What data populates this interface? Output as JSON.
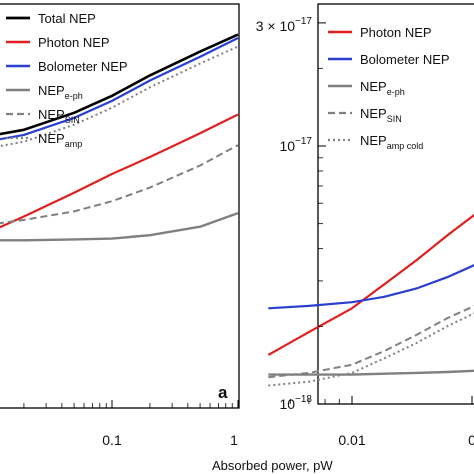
{
  "xlabel": "Absorbed power, pW",
  "colors": {
    "total": "#000000",
    "photon": "#e02020",
    "bolometer": "#2a3fd0",
    "gray": "#808080"
  },
  "chart_data": [
    {
      "type": "line",
      "panel_label": "a",
      "xscale": "log",
      "yscale": "log",
      "xlim": [
        0.01,
        1
      ],
      "x_ticks": [
        "0.1",
        "1"
      ],
      "legend_placement": "top-left",
      "legend": [
        {
          "base": "Total NEP",
          "sub": ""
        },
        {
          "base": "Photon NEP",
          "sub": ""
        },
        {
          "base": "Bolometer NEP",
          "sub": ""
        },
        {
          "base": "NEP",
          "sub": "e-ph"
        },
        {
          "base": "NEP",
          "sub": "SIN"
        },
        {
          "base": "NEP",
          "sub": "amp"
        }
      ],
      "x": [
        0.01,
        0.02,
        0.05,
        0.1,
        0.2,
        0.5,
        1.0
      ],
      "series": [
        {
          "name": "Total NEP",
          "values": [
            0.42,
            0.46,
            0.56,
            0.66,
            0.78,
            0.92,
            1.02
          ]
        },
        {
          "name": "Photon NEP",
          "values": [
            -0.15,
            -0.05,
            0.09,
            0.2,
            0.3,
            0.44,
            0.55
          ]
        },
        {
          "name": "Bolometer NEP",
          "values": [
            0.39,
            0.43,
            0.53,
            0.63,
            0.75,
            0.89,
            1.0
          ]
        },
        {
          "name": "NEP e-ph",
          "values": [
            -0.19,
            -0.19,
            -0.185,
            -0.18,
            -0.16,
            -0.11,
            -0.03
          ]
        },
        {
          "name": "NEP SIN",
          "values": [
            -0.1,
            -0.07,
            -0.02,
            0.04,
            0.12,
            0.25,
            0.37
          ]
        },
        {
          "name": "NEP amp",
          "values": [
            0.35,
            0.39,
            0.49,
            0.59,
            0.71,
            0.85,
            0.95
          ]
        }
      ]
    },
    {
      "type": "line",
      "xscale": "log",
      "yscale": "log",
      "ylim": [
        1e-18,
        3e-17
      ],
      "y_ticks": [
        "3 × 10",
        "10",
        "10"
      ],
      "y_tick_exponents": [
        "−17",
        "−17",
        "−18"
      ],
      "x_ticks": [
        "0.01",
        "0"
      ],
      "legend_placement": "top-left",
      "legend": [
        {
          "base": "Photon NEP",
          "sub": ""
        },
        {
          "base": "Bolometer NEP",
          "sub": ""
        },
        {
          "base": "NEP",
          "sub": "e-ph"
        },
        {
          "base": "NEP",
          "sub": "SIN"
        },
        {
          "base": "NEP",
          "sub": "amp cold"
        }
      ],
      "x": [
        0.005,
        0.007,
        0.01,
        0.013,
        0.017,
        0.022,
        0.03,
        0.04
      ],
      "series": [
        {
          "name": "Photon NEP",
          "values": [
            1.55e-18,
            1.9e-18,
            2.35e-18,
            2.9e-18,
            3.6e-18,
            4.5e-18,
            5.8e-18,
            7e-18
          ]
        },
        {
          "name": "Bolometer NEP",
          "values": [
            2.35e-18,
            2.4e-18,
            2.48e-18,
            2.6e-18,
            2.8e-18,
            3.1e-18,
            3.6e-18,
            4.2e-18
          ]
        },
        {
          "name": "NEP e-ph",
          "values": [
            1.3e-18,
            1.3e-18,
            1.3e-18,
            1.31e-18,
            1.32e-18,
            1.33e-18,
            1.35e-18,
            1.37e-18
          ]
        },
        {
          "name": "NEP SIN",
          "values": [
            1.27e-18,
            1.32e-18,
            1.42e-18,
            1.6e-18,
            1.85e-18,
            2.15e-18,
            2.5e-18,
            2.8e-18
          ]
        },
        {
          "name": "NEP amp cold",
          "values": [
            1.18e-18,
            1.22e-18,
            1.32e-18,
            1.5e-18,
            1.72e-18,
            2e-18,
            2.35e-18,
            2.65e-18
          ]
        }
      ]
    }
  ]
}
